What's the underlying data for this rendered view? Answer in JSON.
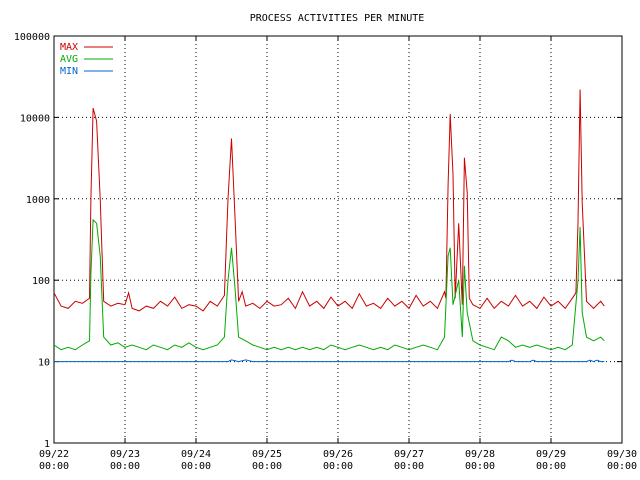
{
  "chart_data": {
    "type": "line",
    "title": "PROCESS ACTIVITIES PER MINUTE",
    "xlabel": "",
    "ylabel": "",
    "y_scale": "log",
    "ylim": [
      1,
      100000
    ],
    "y_ticks": [
      {
        "value": 1,
        "label": "1"
      },
      {
        "value": 10,
        "label": "10"
      },
      {
        "value": 100,
        "label": "100"
      },
      {
        "value": 1000,
        "label": "1000"
      },
      {
        "value": 10000,
        "label": "10000"
      },
      {
        "value": 100000,
        "label": "100000"
      }
    ],
    "xlim": [
      "09/22 00:00",
      "09/30 00:00"
    ],
    "x_ticks": [
      {
        "date": "09/22",
        "time": "00:00"
      },
      {
        "date": "09/23",
        "time": "00:00"
      },
      {
        "date": "09/24",
        "time": "00:00"
      },
      {
        "date": "09/25",
        "time": "00:00"
      },
      {
        "date": "09/26",
        "time": "00:00"
      },
      {
        "date": "09/27",
        "time": "00:00"
      },
      {
        "date": "09/28",
        "time": "00:00"
      },
      {
        "date": "09/29",
        "time": "00:00"
      },
      {
        "date": "09/30",
        "time": "00:00"
      }
    ],
    "grid": true,
    "legend_position": "top-left",
    "x_unit": "days since 09/22 00:00",
    "series": [
      {
        "name": "MAX",
        "color": "#cc0000",
        "points": [
          [
            0.0,
            70
          ],
          [
            0.1,
            48
          ],
          [
            0.2,
            45
          ],
          [
            0.3,
            55
          ],
          [
            0.4,
            52
          ],
          [
            0.5,
            60
          ],
          [
            0.52,
            1000
          ],
          [
            0.55,
            13000
          ],
          [
            0.6,
            9000
          ],
          [
            0.65,
            1000
          ],
          [
            0.7,
            55
          ],
          [
            0.8,
            48
          ],
          [
            0.9,
            52
          ],
          [
            1.0,
            50
          ],
          [
            1.05,
            70
          ],
          [
            1.1,
            45
          ],
          [
            1.2,
            42
          ],
          [
            1.3,
            48
          ],
          [
            1.4,
            45
          ],
          [
            1.5,
            55
          ],
          [
            1.6,
            48
          ],
          [
            1.7,
            62
          ],
          [
            1.8,
            45
          ],
          [
            1.9,
            50
          ],
          [
            2.0,
            48
          ],
          [
            2.1,
            42
          ],
          [
            2.2,
            55
          ],
          [
            2.3,
            48
          ],
          [
            2.4,
            65
          ],
          [
            2.45,
            1000
          ],
          [
            2.5,
            5500
          ],
          [
            2.55,
            600
          ],
          [
            2.6,
            55
          ],
          [
            2.65,
            72
          ],
          [
            2.7,
            48
          ],
          [
            2.8,
            52
          ],
          [
            2.9,
            45
          ],
          [
            3.0,
            55
          ],
          [
            3.1,
            48
          ],
          [
            3.2,
            50
          ],
          [
            3.3,
            60
          ],
          [
            3.4,
            45
          ],
          [
            3.5,
            72
          ],
          [
            3.6,
            48
          ],
          [
            3.7,
            55
          ],
          [
            3.8,
            45
          ],
          [
            3.9,
            62
          ],
          [
            4.0,
            48
          ],
          [
            4.1,
            55
          ],
          [
            4.2,
            45
          ],
          [
            4.3,
            68
          ],
          [
            4.4,
            48
          ],
          [
            4.5,
            52
          ],
          [
            4.6,
            45
          ],
          [
            4.7,
            60
          ],
          [
            4.8,
            48
          ],
          [
            4.9,
            55
          ],
          [
            5.0,
            45
          ],
          [
            5.1,
            65
          ],
          [
            5.2,
            48
          ],
          [
            5.3,
            55
          ],
          [
            5.4,
            45
          ],
          [
            5.5,
            72
          ],
          [
            5.52,
            60
          ],
          [
            5.55,
            1500
          ],
          [
            5.58,
            11000
          ],
          [
            5.62,
            2000
          ],
          [
            5.65,
            60
          ],
          [
            5.7,
            500
          ],
          [
            5.75,
            50
          ],
          [
            5.78,
            3200
          ],
          [
            5.82,
            1200
          ],
          [
            5.85,
            60
          ],
          [
            5.9,
            50
          ],
          [
            6.0,
            45
          ],
          [
            6.1,
            60
          ],
          [
            6.2,
            45
          ],
          [
            6.3,
            55
          ],
          [
            6.4,
            48
          ],
          [
            6.5,
            65
          ],
          [
            6.6,
            48
          ],
          [
            6.7,
            55
          ],
          [
            6.8,
            45
          ],
          [
            6.9,
            62
          ],
          [
            7.0,
            48
          ],
          [
            7.1,
            55
          ],
          [
            7.2,
            45
          ],
          [
            7.3,
            60
          ],
          [
            7.35,
            70
          ],
          [
            7.38,
            500
          ],
          [
            7.41,
            22000
          ],
          [
            7.44,
            900
          ],
          [
            7.5,
            55
          ],
          [
            7.6,
            45
          ],
          [
            7.7,
            55
          ],
          [
            7.75,
            48
          ]
        ]
      },
      {
        "name": "AVG",
        "color": "#00aa00",
        "points": [
          [
            0.0,
            16
          ],
          [
            0.1,
            14
          ],
          [
            0.2,
            15
          ],
          [
            0.3,
            14
          ],
          [
            0.4,
            16
          ],
          [
            0.5,
            18
          ],
          [
            0.52,
            120
          ],
          [
            0.55,
            550
          ],
          [
            0.6,
            500
          ],
          [
            0.65,
            200
          ],
          [
            0.7,
            20
          ],
          [
            0.8,
            16
          ],
          [
            0.9,
            17
          ],
          [
            1.0,
            15
          ],
          [
            1.1,
            16
          ],
          [
            1.2,
            15
          ],
          [
            1.3,
            14
          ],
          [
            1.4,
            16
          ],
          [
            1.5,
            15
          ],
          [
            1.6,
            14
          ],
          [
            1.7,
            16
          ],
          [
            1.8,
            15
          ],
          [
            1.9,
            17
          ],
          [
            2.0,
            15
          ],
          [
            2.1,
            14
          ],
          [
            2.2,
            15
          ],
          [
            2.3,
            16
          ],
          [
            2.4,
            20
          ],
          [
            2.45,
            100
          ],
          [
            2.5,
            250
          ],
          [
            2.55,
            80
          ],
          [
            2.6,
            20
          ],
          [
            2.7,
            18
          ],
          [
            2.8,
            16
          ],
          [
            2.9,
            15
          ],
          [
            3.0,
            14
          ],
          [
            3.1,
            15
          ],
          [
            3.2,
            14
          ],
          [
            3.3,
            15
          ],
          [
            3.4,
            14
          ],
          [
            3.5,
            15
          ],
          [
            3.6,
            14
          ],
          [
            3.7,
            15
          ],
          [
            3.8,
            14
          ],
          [
            3.9,
            16
          ],
          [
            4.0,
            15
          ],
          [
            4.1,
            14
          ],
          [
            4.2,
            15
          ],
          [
            4.3,
            16
          ],
          [
            4.4,
            15
          ],
          [
            4.5,
            14
          ],
          [
            4.6,
            15
          ],
          [
            4.7,
            14
          ],
          [
            4.8,
            16
          ],
          [
            4.9,
            15
          ],
          [
            5.0,
            14
          ],
          [
            5.1,
            15
          ],
          [
            5.2,
            16
          ],
          [
            5.3,
            15
          ],
          [
            5.4,
            14
          ],
          [
            5.5,
            20
          ],
          [
            5.55,
            200
          ],
          [
            5.58,
            250
          ],
          [
            5.62,
            50
          ],
          [
            5.7,
            100
          ],
          [
            5.75,
            20
          ],
          [
            5.78,
            150
          ],
          [
            5.82,
            40
          ],
          [
            5.9,
            18
          ],
          [
            6.0,
            16
          ],
          [
            6.1,
            15
          ],
          [
            6.2,
            14
          ],
          [
            6.3,
            20
          ],
          [
            6.4,
            18
          ],
          [
            6.5,
            15
          ],
          [
            6.6,
            16
          ],
          [
            6.7,
            15
          ],
          [
            6.8,
            16
          ],
          [
            6.9,
            15
          ],
          [
            7.0,
            14
          ],
          [
            7.1,
            15
          ],
          [
            7.2,
            14
          ],
          [
            7.3,
            16
          ],
          [
            7.38,
            100
          ],
          [
            7.41,
            450
          ],
          [
            7.44,
            40
          ],
          [
            7.5,
            20
          ],
          [
            7.6,
            18
          ],
          [
            7.7,
            20
          ],
          [
            7.75,
            18
          ]
        ]
      },
      {
        "name": "MIN",
        "color": "#0066cc",
        "points": [
          [
            0.0,
            10
          ],
          [
            2.45,
            10
          ],
          [
            2.5,
            10.5
          ],
          [
            2.6,
            10
          ],
          [
            2.7,
            10.5
          ],
          [
            2.8,
            10
          ],
          [
            6.4,
            10
          ],
          [
            6.45,
            10.4
          ],
          [
            6.5,
            10
          ],
          [
            6.7,
            10
          ],
          [
            6.75,
            10.4
          ],
          [
            6.8,
            10
          ],
          [
            7.5,
            10
          ],
          [
            7.55,
            10.4
          ],
          [
            7.6,
            10
          ],
          [
            7.65,
            10.4
          ],
          [
            7.7,
            10
          ],
          [
            7.75,
            10
          ]
        ]
      }
    ]
  }
}
